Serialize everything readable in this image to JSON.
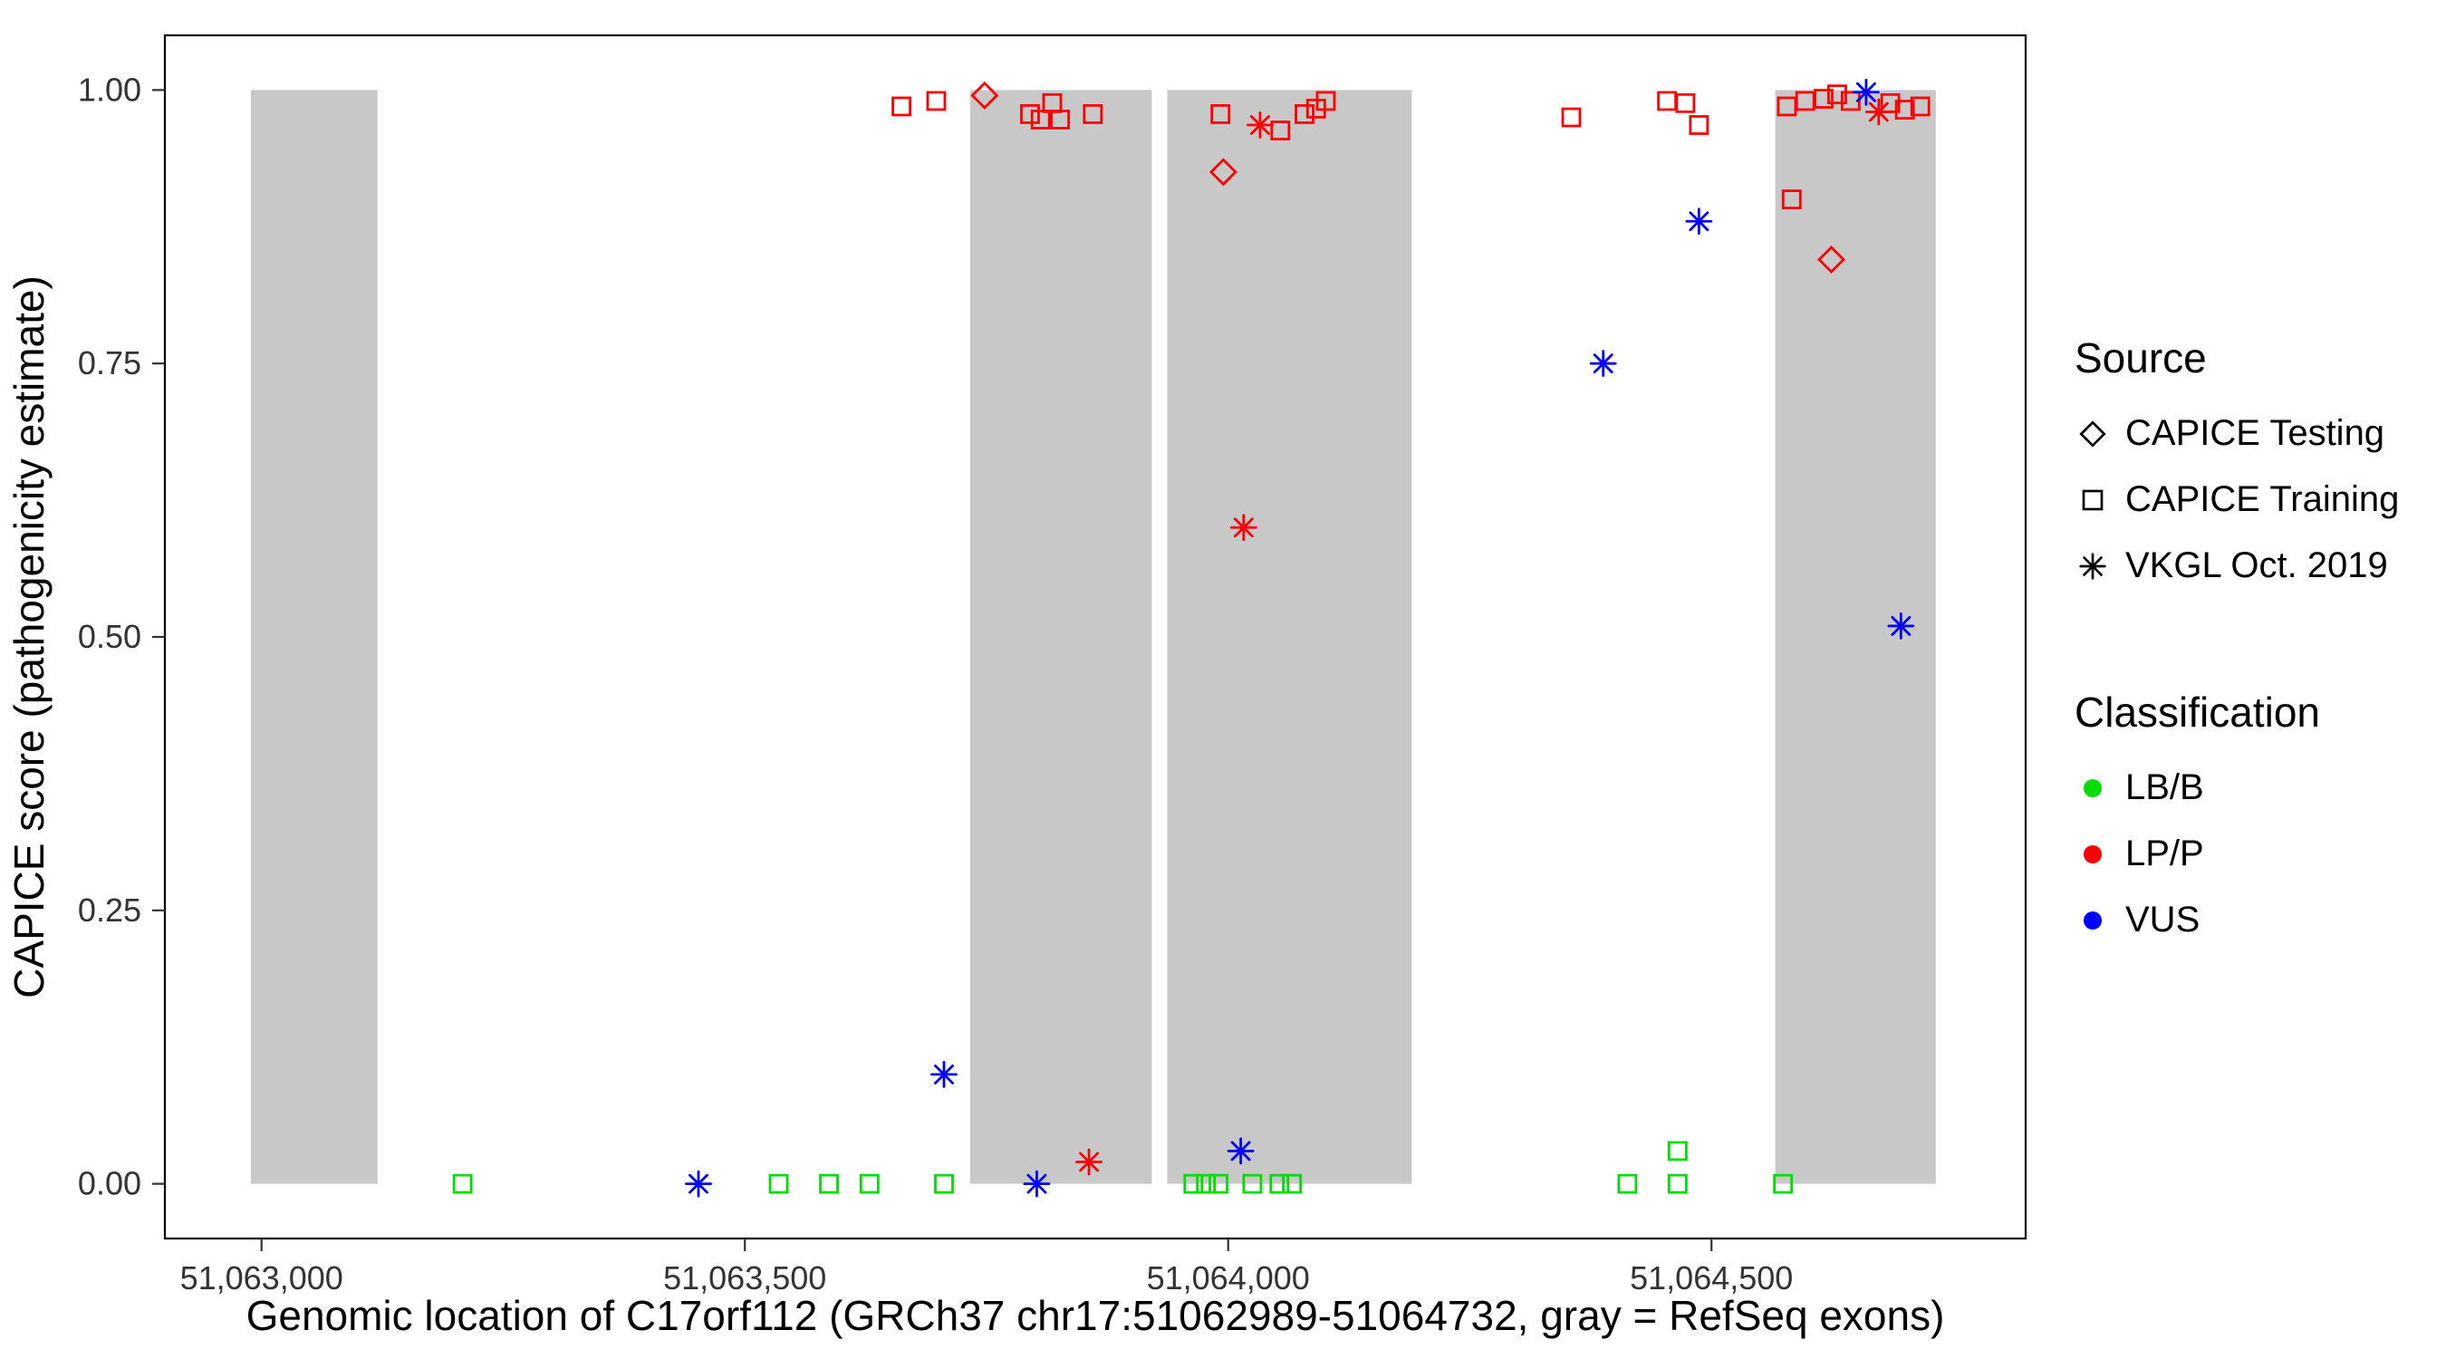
{
  "figure": {
    "x_axis_title": "Genomic location of C17orf112 (GRCh37 chr17:51062989-51064732, gray = RefSeq exons)",
    "y_axis_title": "CAPICE score (pathogenicity estimate)"
  },
  "legend": {
    "source": {
      "title": "Source",
      "items": [
        {
          "label": "CAPICE Testing",
          "marker": "diamond-open"
        },
        {
          "label": "CAPICE Training",
          "marker": "square-open"
        },
        {
          "label": "VKGL Oct. 2019",
          "marker": "asterisk"
        }
      ]
    },
    "classification": {
      "title": "Classification",
      "items": [
        {
          "label": "LB/B",
          "color": "#00DD00"
        },
        {
          "label": "LP/P",
          "color": "#FF0000"
        },
        {
          "label": "VUS",
          "color": "#0000FF"
        }
      ]
    }
  },
  "chart_data": {
    "type": "scatter",
    "title": "",
    "xlabel": "Genomic location of C17orf112 (GRCh37 chr17:51062989-51064732, gray = RefSeq exons)",
    "ylabel": "CAPICE score (pathogenicity estimate)",
    "x_domain": [
      51062900,
      51064825
    ],
    "y_domain": [
      -0.05,
      1.05
    ],
    "x_ticks": [
      {
        "value": 51063000,
        "label": "51,063,000"
      },
      {
        "value": 51063500,
        "label": "51,063,500"
      },
      {
        "value": 51064000,
        "label": "51,064,000"
      },
      {
        "value": 51064500,
        "label": "51,064,500"
      }
    ],
    "y_ticks": [
      {
        "value": 0.0,
        "label": "0.00"
      },
      {
        "value": 0.25,
        "label": "0.25"
      },
      {
        "value": 0.5,
        "label": "0.50"
      },
      {
        "value": 0.75,
        "label": "0.75"
      },
      {
        "value": 1.0,
        "label": "1.00"
      }
    ],
    "grid": false,
    "legend_position": "right",
    "exon_color": "#C8C8C8",
    "exons": [
      [
        51062989,
        51063120
      ],
      [
        51063733,
        51063921
      ],
      [
        51063937,
        51064190
      ],
      [
        51064566,
        51064732
      ]
    ],
    "colors": {
      "LB/B": "#00DD00",
      "LP/P": "#FF0000",
      "VUS": "#0000FF"
    },
    "shapes": {
      "CAPICE Testing": "diamond",
      "CAPICE Training": "square",
      "VKGL Oct. 2019": "asterisk"
    },
    "points": [
      {
        "pos": 51063662,
        "score": 0.985,
        "source": "CAPICE Training",
        "classification": "LP/P"
      },
      {
        "pos": 51063698,
        "score": 0.99,
        "source": "CAPICE Training",
        "classification": "LP/P"
      },
      {
        "pos": 51063795,
        "score": 0.978,
        "source": "CAPICE Training",
        "classification": "LP/P"
      },
      {
        "pos": 51063806,
        "score": 0.973,
        "source": "CAPICE Training",
        "classification": "LP/P"
      },
      {
        "pos": 51063818,
        "score": 0.988,
        "source": "CAPICE Training",
        "classification": "LP/P"
      },
      {
        "pos": 51063826,
        "score": 0.973,
        "source": "CAPICE Training",
        "classification": "LP/P"
      },
      {
        "pos": 51063860,
        "score": 0.978,
        "source": "CAPICE Training",
        "classification": "LP/P"
      },
      {
        "pos": 51063992,
        "score": 0.978,
        "source": "CAPICE Training",
        "classification": "LP/P"
      },
      {
        "pos": 51064054,
        "score": 0.963,
        "source": "CAPICE Training",
        "classification": "LP/P"
      },
      {
        "pos": 51064079,
        "score": 0.978,
        "source": "CAPICE Training",
        "classification": "LP/P"
      },
      {
        "pos": 51064091,
        "score": 0.983,
        "source": "CAPICE Training",
        "classification": "LP/P"
      },
      {
        "pos": 51064101,
        "score": 0.99,
        "source": "CAPICE Training",
        "classification": "LP/P"
      },
      {
        "pos": 51064355,
        "score": 0.975,
        "source": "CAPICE Training",
        "classification": "LP/P"
      },
      {
        "pos": 51064454,
        "score": 0.99,
        "source": "CAPICE Training",
        "classification": "LP/P"
      },
      {
        "pos": 51064473,
        "score": 0.988,
        "source": "CAPICE Training",
        "classification": "LP/P"
      },
      {
        "pos": 51064487,
        "score": 0.968,
        "source": "CAPICE Training",
        "classification": "LP/P"
      },
      {
        "pos": 51064578,
        "score": 0.985,
        "source": "CAPICE Training",
        "classification": "LP/P"
      },
      {
        "pos": 51064583,
        "score": 0.9,
        "source": "CAPICE Training",
        "classification": "LP/P"
      },
      {
        "pos": 51064597,
        "score": 0.99,
        "source": "CAPICE Training",
        "classification": "LP/P"
      },
      {
        "pos": 51064616,
        "score": 0.992,
        "source": "CAPICE Training",
        "classification": "LP/P"
      },
      {
        "pos": 51064630,
        "score": 0.996,
        "source": "CAPICE Training",
        "classification": "LP/P"
      },
      {
        "pos": 51064644,
        "score": 0.99,
        "source": "CAPICE Training",
        "classification": "LP/P"
      },
      {
        "pos": 51064685,
        "score": 0.988,
        "source": "CAPICE Training",
        "classification": "LP/P"
      },
      {
        "pos": 51064700,
        "score": 0.982,
        "source": "CAPICE Training",
        "classification": "LP/P"
      },
      {
        "pos": 51064716,
        "score": 0.985,
        "source": "CAPICE Training",
        "classification": "LP/P"
      },
      {
        "pos": 51063748,
        "score": 0.995,
        "source": "CAPICE Testing",
        "classification": "LP/P"
      },
      {
        "pos": 51063995,
        "score": 0.925,
        "source": "CAPICE Testing",
        "classification": "LP/P"
      },
      {
        "pos": 51064624,
        "score": 0.845,
        "source": "CAPICE Testing",
        "classification": "LP/P"
      },
      {
        "pos": 51064033,
        "score": 0.968,
        "source": "VKGL Oct. 2019",
        "classification": "LP/P"
      },
      {
        "pos": 51064016,
        "score": 0.6,
        "source": "VKGL Oct. 2019",
        "classification": "LP/P"
      },
      {
        "pos": 51063856,
        "score": 0.02,
        "source": "VKGL Oct. 2019",
        "classification": "LP/P"
      },
      {
        "pos": 51064673,
        "score": 0.98,
        "source": "VKGL Oct. 2019",
        "classification": "LP/P"
      },
      {
        "pos": 51064013,
        "score": 0.03,
        "source": "VKGL Oct. 2019",
        "classification": "VUS"
      },
      {
        "pos": 51064388,
        "score": 0.75,
        "source": "VKGL Oct. 2019",
        "classification": "VUS"
      },
      {
        "pos": 51064487,
        "score": 0.88,
        "source": "VKGL Oct. 2019",
        "classification": "VUS"
      },
      {
        "pos": 51064660,
        "score": 0.998,
        "source": "VKGL Oct. 2019",
        "classification": "VUS"
      },
      {
        "pos": 51064696,
        "score": 0.51,
        "source": "VKGL Oct. 2019",
        "classification": "VUS"
      },
      {
        "pos": 51063706,
        "score": 0.1,
        "source": "VKGL Oct. 2019",
        "classification": "VUS"
      },
      {
        "pos": 51063452,
        "score": 0.0,
        "source": "VKGL Oct. 2019",
        "classification": "VUS"
      },
      {
        "pos": 51063802,
        "score": 0.0,
        "source": "VKGL Oct. 2019",
        "classification": "VUS"
      },
      {
        "pos": 51063208,
        "score": 0.0,
        "source": "CAPICE Training",
        "classification": "LB/B"
      },
      {
        "pos": 51063535,
        "score": 0.0,
        "source": "CAPICE Training",
        "classification": "LB/B"
      },
      {
        "pos": 51063587,
        "score": 0.0,
        "source": "CAPICE Training",
        "classification": "LB/B"
      },
      {
        "pos": 51063629,
        "score": 0.0,
        "source": "CAPICE Training",
        "classification": "LB/B"
      },
      {
        "pos": 51063706,
        "score": 0.0,
        "source": "CAPICE Training",
        "classification": "LB/B"
      },
      {
        "pos": 51063964,
        "score": 0.0,
        "source": "CAPICE Training",
        "classification": "LB/B"
      },
      {
        "pos": 51063977,
        "score": 0.0,
        "source": "CAPICE Training",
        "classification": "LB/B"
      },
      {
        "pos": 51063990,
        "score": 0.0,
        "source": "CAPICE Training",
        "classification": "LB/B"
      },
      {
        "pos": 51064025,
        "score": 0.0,
        "source": "CAPICE Training",
        "classification": "LB/B"
      },
      {
        "pos": 51064053,
        "score": 0.0,
        "source": "CAPICE Training",
        "classification": "LB/B"
      },
      {
        "pos": 51064066,
        "score": 0.0,
        "source": "CAPICE Training",
        "classification": "LB/B"
      },
      {
        "pos": 51064413,
        "score": 0.0,
        "source": "CAPICE Training",
        "classification": "LB/B"
      },
      {
        "pos": 51064465,
        "score": 0.03,
        "source": "CAPICE Training",
        "classification": "LB/B"
      },
      {
        "pos": 51064465,
        "score": 0.0,
        "source": "CAPICE Training",
        "classification": "LB/B"
      },
      {
        "pos": 51064574,
        "score": 0.0,
        "source": "CAPICE Training",
        "classification": "LB/B"
      }
    ]
  }
}
